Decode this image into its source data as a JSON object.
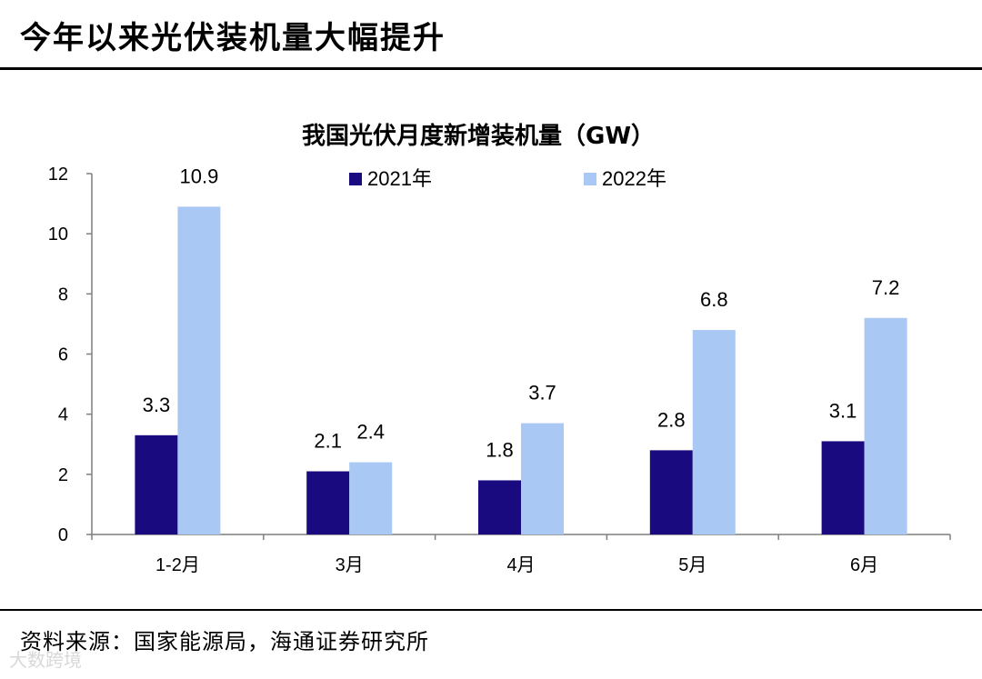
{
  "header": {
    "title": "今年以来光伏装机量大幅提升"
  },
  "footer": {
    "source": "资料来源：国家能源局，海通证券研究所"
  },
  "watermark": {
    "text": "大数跨境"
  },
  "colors": {
    "series_2021": "#1a0a80",
    "series_2022": "#a9c8f3",
    "axis": "#7f7f7f"
  },
  "chart_data": {
    "type": "bar",
    "title": "我国光伏月度新增装机量（GW）",
    "categories": [
      "1-2月",
      "3月",
      "4月",
      "5月",
      "6月"
    ],
    "series": [
      {
        "name": "2021年",
        "values": [
          3.3,
          2.1,
          1.8,
          2.8,
          3.1
        ]
      },
      {
        "name": "2022年",
        "values": [
          10.9,
          2.4,
          3.7,
          6.8,
          7.2
        ]
      }
    ],
    "ylim": [
      0,
      12
    ],
    "yticks": [
      0,
      2,
      4,
      6,
      8,
      10,
      12
    ],
    "grid": false,
    "legend": "top"
  }
}
